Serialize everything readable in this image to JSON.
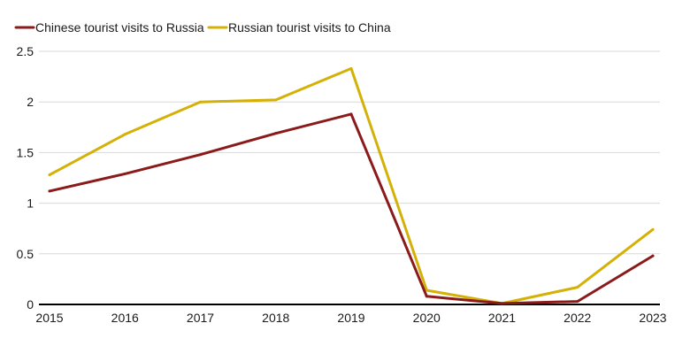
{
  "chart_data": {
    "type": "line",
    "title": "",
    "xlabel": "",
    "ylabel": "",
    "x": [
      "2015",
      "2016",
      "2017",
      "2018",
      "2019",
      "2020",
      "2021",
      "2022",
      "2023"
    ],
    "ylim": [
      0,
      2.5
    ],
    "yticks": [
      {
        "value": 0,
        "label": "0"
      },
      {
        "value": 0.5,
        "label": "0.5"
      },
      {
        "value": 1,
        "label": "1"
      },
      {
        "value": 1.5,
        "label": "1.5"
      },
      {
        "value": 2,
        "label": "2"
      },
      {
        "value": 2.5,
        "label": "2.5"
      }
    ],
    "grid": "horizontal",
    "legend_position": "top-left",
    "series": [
      {
        "name": "Chinese tourist visits to Russia",
        "color": "#8b1a1a",
        "values": [
          1.12,
          1.29,
          1.48,
          1.69,
          1.88,
          0.08,
          0.01,
          0.03,
          0.48
        ]
      },
      {
        "name": "Russian tourist visits to China",
        "color": "#d4b106",
        "values": [
          1.28,
          1.68,
          2.0,
          2.02,
          2.33,
          0.14,
          0.01,
          0.17,
          0.74
        ]
      }
    ]
  }
}
